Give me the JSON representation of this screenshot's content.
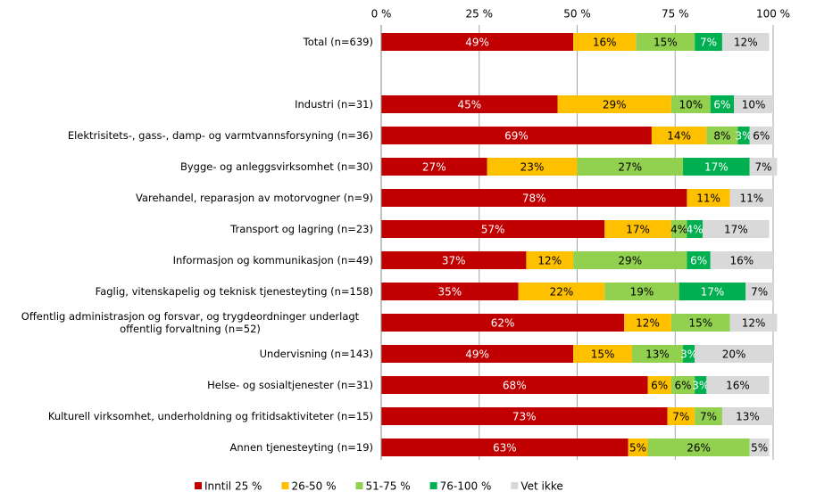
{
  "chart_data": {
    "type": "stacked-bar-horizontal",
    "categories": [
      "Total (n=639)",
      null,
      "Industri (n=31)",
      "Elektrisitets-, gass-, damp- og varmtvannsforsyning (n=36)",
      "Bygge- og anleggsvirksomhet (n=30)",
      "Varehandel, reparasjon av motorvogner (n=9)",
      "Transport og lagring (n=23)",
      "Informasjon og kommunikasjon (n=49)",
      "Faglig, vitenskapelig og teknisk tjenesteyting (n=158)",
      "Offentlig administrasjon og forsvar, og trygdeordninger underlagt offentlig forvaltning (n=52)",
      "Undervisning (n=143)",
      "Helse- og sosialtjenester (n=31)",
      "Kulturell virksomhet, underholdning og fritidsaktiviteter (n=15)",
      "Annen tjenesteyting (n=19)"
    ],
    "series": [
      {
        "name": "Inntil 25 %",
        "color": "#c00000",
        "label_color": "#ffffff",
        "values": [
          49,
          null,
          45,
          69,
          27,
          78,
          57,
          37,
          35,
          62,
          49,
          68,
          73,
          63
        ],
        "value_labels": [
          "49%",
          null,
          "45%",
          "69%",
          "27%",
          "78%",
          "57%",
          "37%",
          "35%",
          "62%",
          "49%",
          "68%",
          "73%",
          "63%"
        ]
      },
      {
        "name": "26-50 %",
        "color": "#ffc000",
        "label_color": "#000000",
        "values": [
          16,
          null,
          29,
          14,
          23,
          11,
          17,
          12,
          22,
          12,
          15,
          6,
          7,
          5
        ],
        "value_labels": [
          "16%",
          null,
          "29%",
          "14%",
          "23%",
          "11%",
          "17%",
          "12%",
          "22%",
          "12%",
          "15%",
          "6%",
          "7%",
          "5%"
        ]
      },
      {
        "name": "51-75 %",
        "color": "#92d050",
        "label_color": "#000000",
        "values": [
          15,
          null,
          10,
          8,
          27,
          null,
          4,
          29,
          19,
          15,
          13,
          6,
          7,
          26
        ],
        "value_labels": [
          "15%",
          null,
          "10%",
          "8%",
          "27%",
          null,
          "4%",
          "29%",
          "19%",
          "15%",
          "13%",
          "6%",
          "7%",
          "26%"
        ]
      },
      {
        "name": "76-100 %",
        "color": "#00b050",
        "label_color": "#ffffff",
        "values": [
          7,
          null,
          6,
          3,
          17,
          null,
          4,
          6,
          17,
          null,
          3,
          3,
          null,
          null
        ],
        "value_labels": [
          "7%",
          null,
          "6%",
          "3%",
          "17%",
          null,
          "4%",
          "6%",
          "17%",
          null,
          "3%",
          "3%",
          null,
          null
        ]
      },
      {
        "name": "Vet ikke",
        "color": "#d9d9d9",
        "label_color": "#000000",
        "values": [
          12,
          null,
          10,
          6,
          7,
          11,
          17,
          16,
          7,
          12,
          20,
          16,
          13,
          5
        ],
        "value_labels": [
          "12%",
          null,
          "10%",
          "6%",
          "7%",
          "11%",
          "17%",
          "16%",
          "7%",
          "12%",
          "20%",
          "16%",
          "13%",
          "5%"
        ]
      }
    ],
    "xlim": [
      0,
      100
    ],
    "xticks": [
      {
        "value": 0,
        "label": "0 %"
      },
      {
        "value": 25,
        "label": "25 %"
      },
      {
        "value": 50,
        "label": "50 %"
      },
      {
        "value": 75,
        "label": "75 %"
      },
      {
        "value": 100,
        "label": "100 %"
      }
    ],
    "grid": true
  }
}
